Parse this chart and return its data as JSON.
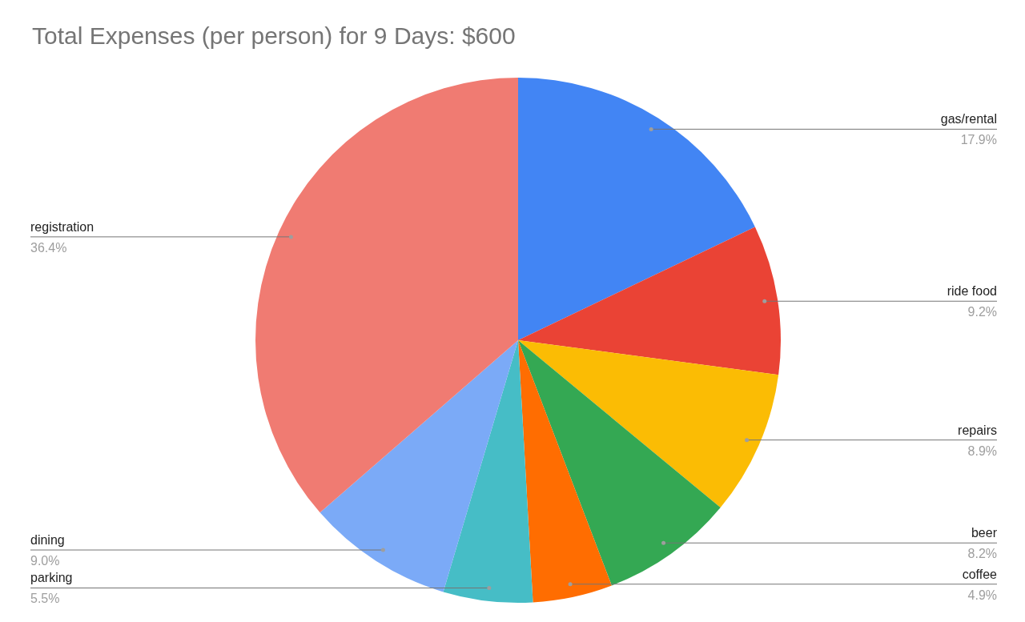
{
  "chart_data": {
    "type": "pie",
    "title": "Total Expenses (per person) for 9 Days: $600",
    "categories": [
      "gas/rental",
      "ride food",
      "repairs",
      "beer",
      "coffee",
      "parking",
      "dining",
      "registration"
    ],
    "values": [
      17.9,
      9.2,
      8.9,
      8.2,
      4.9,
      5.5,
      9.0,
      36.4
    ],
    "value_labels": [
      "17.9%",
      "9.2%",
      "8.9%",
      "8.2%",
      "4.9%",
      "5.5%",
      "9.0%",
      "36.4%"
    ],
    "colors": [
      "#4285f4",
      "#ea4335",
      "#fbbc04",
      "#34a853",
      "#ff6d01",
      "#46bdc6",
      "#7baaf7",
      "#f07b72"
    ],
    "legend": false
  }
}
